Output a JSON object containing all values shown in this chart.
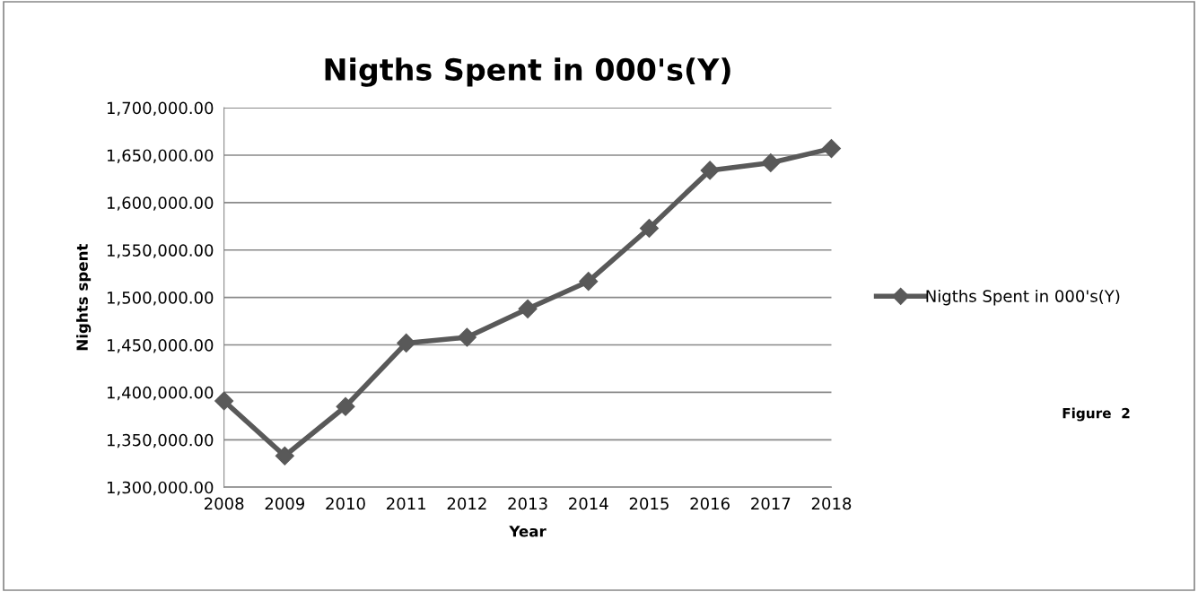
{
  "chart_data": {
    "type": "line",
    "title": "Nigths Spent in 000's(Y)",
    "xlabel": "Year",
    "ylabel": "Nights spent",
    "categories": [
      "2008",
      "2009",
      "2010",
      "2011",
      "2012",
      "2013",
      "2014",
      "2015",
      "2016",
      "2017",
      "2018"
    ],
    "series": [
      {
        "name": "Nigths Spent in 000's(Y)",
        "color": "#595959",
        "values": [
          1391000,
          1333000,
          1385000,
          1452000,
          1458000,
          1488000,
          1517000,
          1573000,
          1634000,
          1642000,
          1657000
        ]
      }
    ],
    "ylim": [
      1300000,
      1700000
    ],
    "yticks": [
      {
        "value": 1300000,
        "label": "1,300,000.00"
      },
      {
        "value": 1350000,
        "label": "1,350,000.00"
      },
      {
        "value": 1400000,
        "label": "1,400,000.00"
      },
      {
        "value": 1450000,
        "label": "1,450,000.00"
      },
      {
        "value": 1500000,
        "label": "1,500,000.00"
      },
      {
        "value": 1550000,
        "label": "1,550,000.00"
      },
      {
        "value": 1600000,
        "label": "1,600,000.00"
      },
      {
        "value": 1650000,
        "label": "1,650,000.00"
      },
      {
        "value": 1700000,
        "label": "1,700,000.00"
      }
    ],
    "grid": "y",
    "legend": "right",
    "marker": "diamond",
    "line_style": "solid",
    "annotations": [
      "Figure  2"
    ]
  }
}
